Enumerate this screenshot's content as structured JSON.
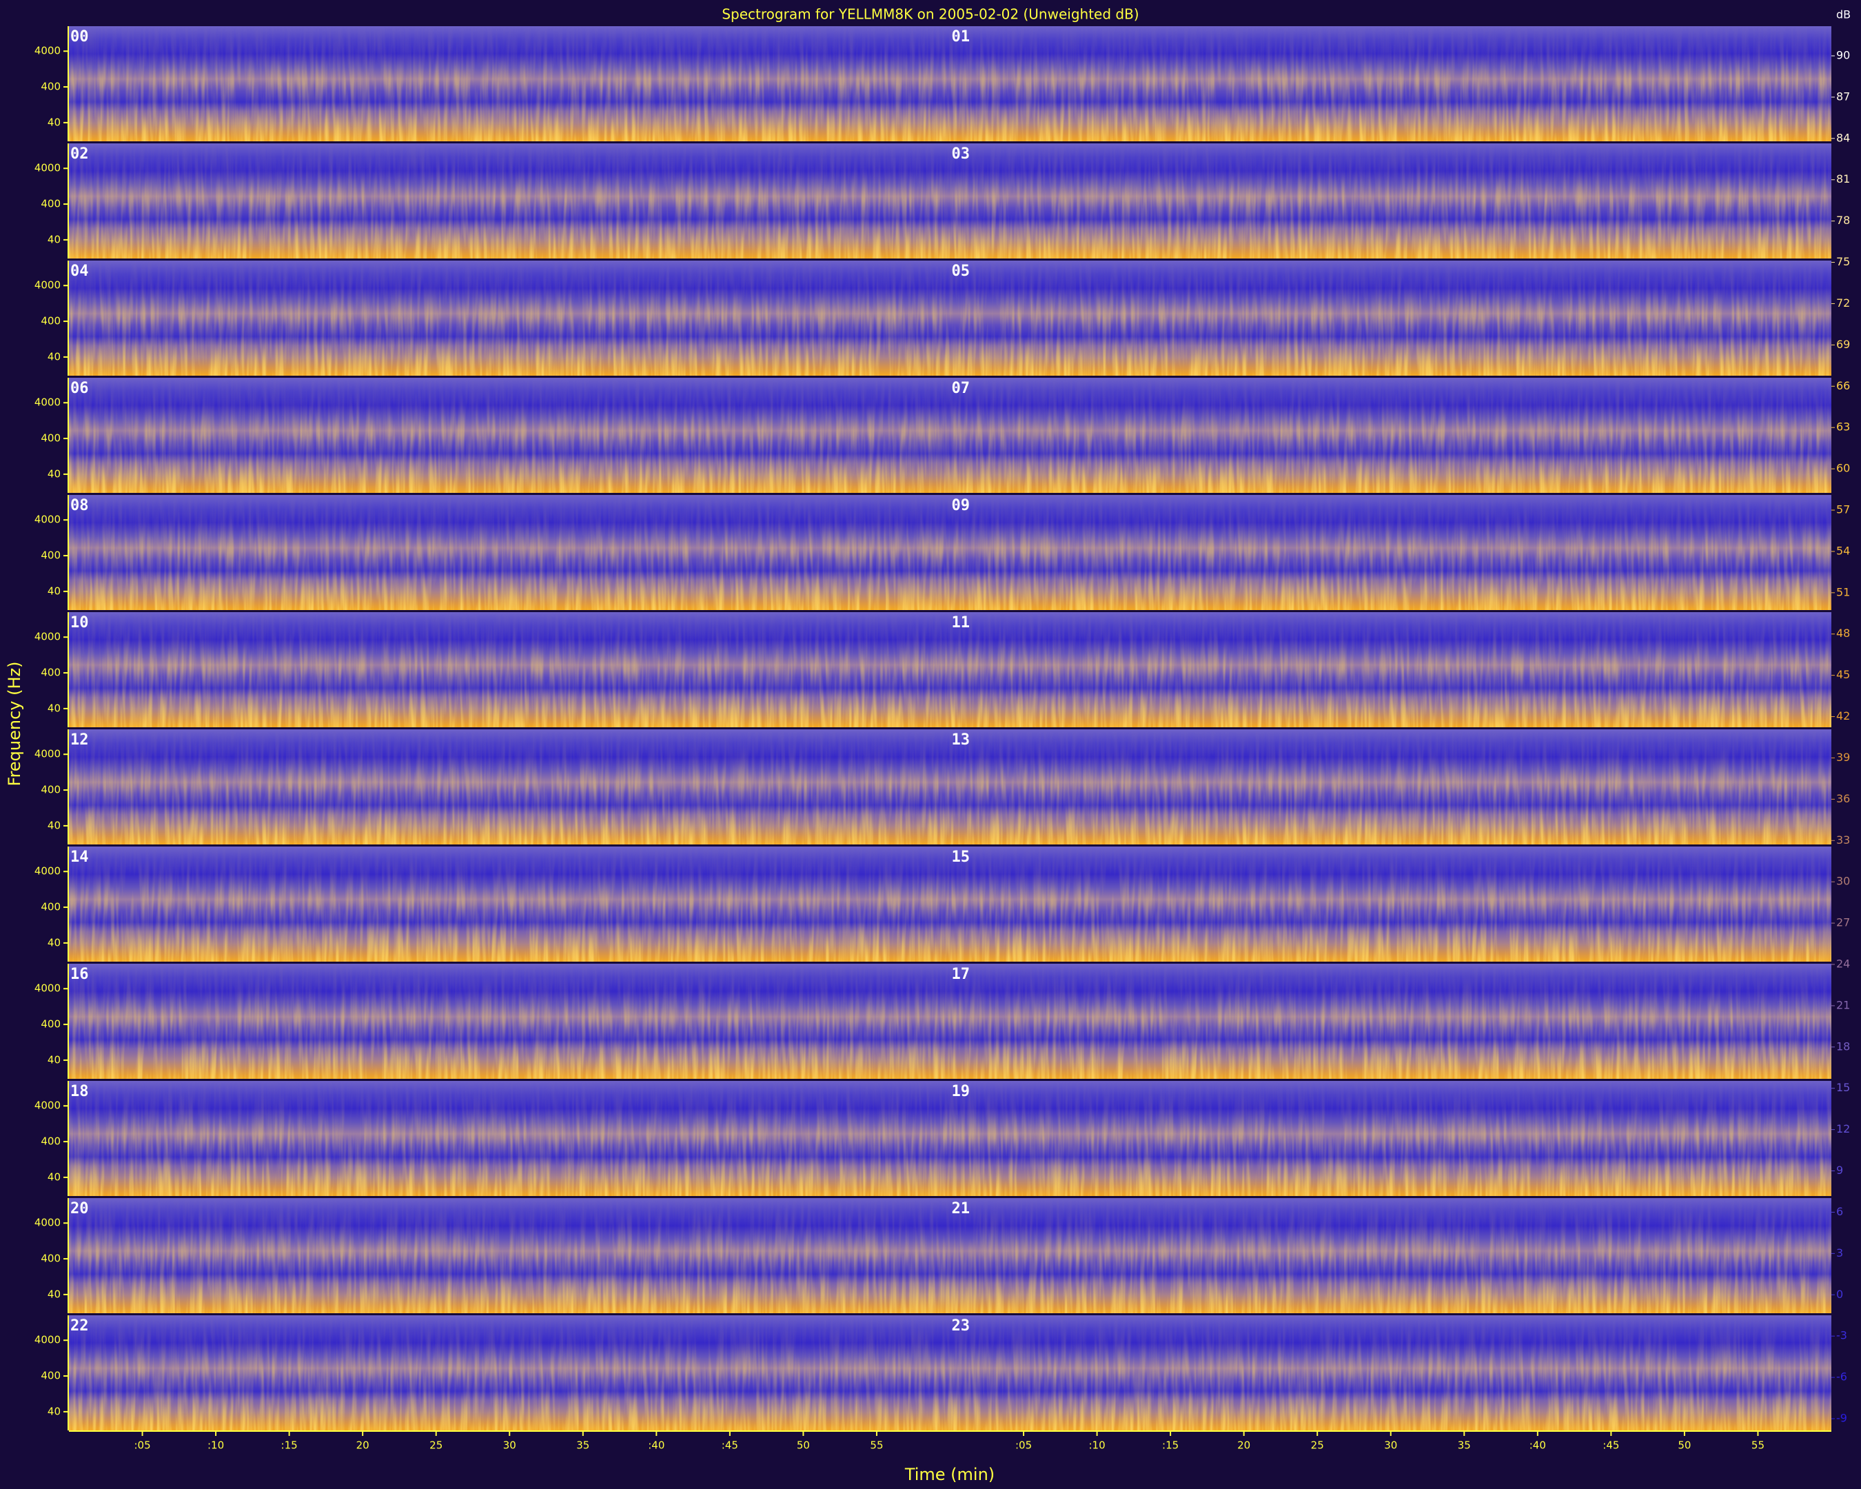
{
  "chart_data": {
    "type": "spectrogram",
    "title": "Spectrogram for YELLMM8K on 2005-02-02 (Unweighted dB)",
    "x_label": "Time (min)",
    "y_label": "Frequency (Hz)",
    "hours": [
      "00",
      "01",
      "02",
      "03",
      "04",
      "05",
      "06",
      "07",
      "08",
      "09",
      "10",
      "11",
      "12",
      "13",
      "14",
      "15",
      "16",
      "17",
      "18",
      "19",
      "20",
      "21",
      "22",
      "23"
    ],
    "xlim": [
      0,
      60
    ],
    "xticks": [
      {
        "value": 5,
        "label": ":05"
      },
      {
        "value": 10,
        "label": ":10"
      },
      {
        "value": 15,
        "label": ":15"
      },
      20,
      25,
      30,
      35,
      {
        "value": 40,
        "label": ":40"
      },
      {
        "value": 45,
        "label": ":45"
      },
      50,
      55
    ],
    "log_y": true,
    "ylim": [
      12,
      20000
    ],
    "yticks": [
      40,
      400,
      4000
    ],
    "colorbar": {
      "label": "dB",
      "lim": [
        -9,
        90
      ],
      "ticks": [
        90,
        87,
        84,
        81,
        78,
        75,
        72,
        69,
        66,
        63,
        60,
        57,
        54,
        51,
        48,
        45,
        42,
        39,
        36,
        33,
        30,
        27,
        24,
        21,
        18,
        15,
        12,
        9,
        6,
        3,
        0,
        -3,
        -6,
        -9
      ],
      "colors": [
        "#2a1ee0",
        "#6a58d0",
        "#e89a30",
        "#ffd040",
        "#ffffff"
      ]
    }
  }
}
